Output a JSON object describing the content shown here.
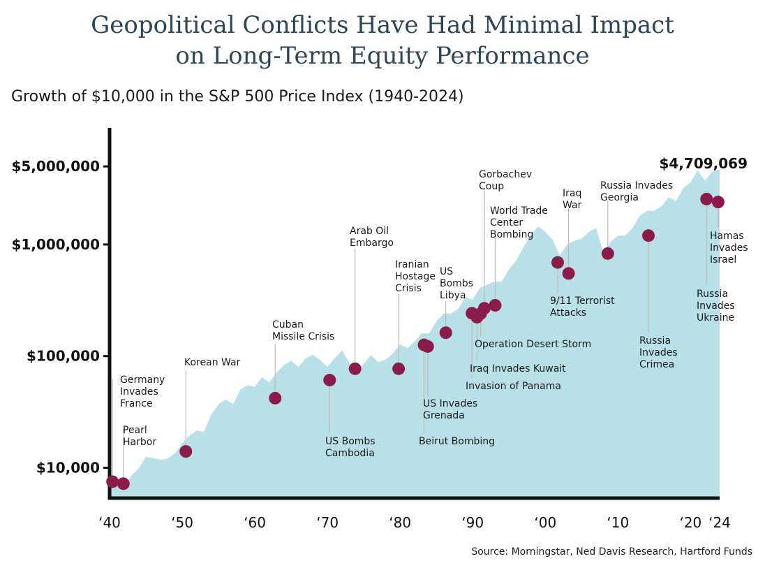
{
  "header": {
    "title_line1": "Geopolitical Conflicts Have Had Minimal Impact",
    "title_line2": "on Long-Term Equity Performance",
    "subtitle": "Growth of $10,000 in the S&P 500 Price Index (1940-2024)"
  },
  "source": "Source: Morningstar, Ned Davis Research, Hartford Funds",
  "colors": {
    "area": "#b7e0e8",
    "marker": "#8b1c4a",
    "axis": "#111111",
    "title": "#2b4657",
    "leader": "#bbbbbb"
  },
  "chart_data": {
    "type": "area",
    "title": "Geopolitical Conflicts Have Had Minimal Impact on Long-Term Equity Performance",
    "subtitle": "Growth of $10,000 in the S&P 500 Price Index (1940-2024)",
    "xlabel": "",
    "ylabel": "",
    "scale": "log",
    "ylim": [
      5000,
      5000000
    ],
    "xlim": [
      1940,
      2024
    ],
    "y_ticks": [
      {
        "value": 10000,
        "label": "$10,000"
      },
      {
        "value": 100000,
        "label": "$100,000"
      },
      {
        "value": 1000000,
        "label": "$1,000,000"
      },
      {
        "value": 5000000,
        "label": "$5,000,000"
      }
    ],
    "x_ticks": [
      {
        "value": 1940,
        "label": "‘40"
      },
      {
        "value": 1950,
        "label": "‘50"
      },
      {
        "value": 1960,
        "label": "‘60"
      },
      {
        "value": 1970,
        "label": "‘70"
      },
      {
        "value": 1980,
        "label": "‘80"
      },
      {
        "value": 1990,
        "label": "‘90"
      },
      {
        "value": 2000,
        "label": "‘00"
      },
      {
        "value": 2010,
        "label": "‘10"
      },
      {
        "value": 2020,
        "label": "‘20"
      },
      {
        "value": 2024,
        "label": "‘24"
      }
    ],
    "final_label": "$4,709,069",
    "series": [
      {
        "x": [
          1940,
          1941,
          1942,
          1943,
          1944,
          1945,
          1946,
          1947,
          1948,
          1949,
          1950,
          1951,
          1952,
          1953,
          1954,
          1955,
          1956,
          1957,
          1958,
          1959,
          1960,
          1961,
          1962,
          1963,
          1964,
          1965,
          1966,
          1967,
          1968,
          1969,
          1970,
          1971,
          1972,
          1973,
          1974,
          1975,
          1976,
          1977,
          1978,
          1979,
          1980,
          1981,
          1982,
          1983,
          1984,
          1985,
          1986,
          1987,
          1988,
          1989,
          1990,
          1991,
          1992,
          1993,
          1994,
          1995,
          1996,
          1997,
          1998,
          1999,
          2000,
          2001,
          2002,
          2003,
          2004,
          2005,
          2006,
          2007,
          2008,
          2009,
          2010,
          2011,
          2012,
          2013,
          2014,
          2015,
          2016,
          2017,
          2018,
          2019,
          2020,
          2021,
          2022,
          2023,
          2024
        ],
        "values": [
          8000,
          7200,
          6500,
          8500,
          9800,
          12500,
          12200,
          11800,
          12000,
          13500,
          16500,
          19500,
          21500,
          21000,
          30000,
          37000,
          41000,
          37000,
          50000,
          55000,
          53000,
          65000,
          58000,
          71000,
          83000,
          91000,
          80000,
          95000,
          103000,
          92000,
          80000,
          96000,
          112000,
          88000,
          70000,
          86000,
          102000,
          88000,
          93000,
          105000,
          128000,
          118000,
          135000,
          160000,
          160000,
          205000,
          240000,
          240000,
          265000,
          340000,
          320000,
          410000,
          435000,
          465000,
          465000,
          600000,
          720000,
          950000,
          1200000,
          1450000,
          1300000,
          1100000,
          800000,
          1000000,
          1080000,
          1130000,
          1300000,
          1400000,
          850000,
          1050000,
          1200000,
          1200000,
          1400000,
          1800000,
          2000000,
          2000000,
          2200000,
          2650000,
          2450000,
          3200000,
          3600000,
          4600000,
          3700000,
          4500000,
          4709069
        ]
      }
    ],
    "events": [
      {
        "label": "Germany Invades France",
        "year": 1940.4,
        "value": 7500,
        "lines": [
          "Germany",
          "Invades",
          "France"
        ]
      },
      {
        "label": "Pearl Harbor",
        "year": 1941.9,
        "value": 7200,
        "lines": [
          "Pearl",
          "Harbor"
        ]
      },
      {
        "label": "Korean War",
        "year": 1950.5,
        "value": 14000,
        "lines": [
          "Korean War"
        ]
      },
      {
        "label": "Cuban Missile Crisis",
        "year": 1962.8,
        "value": 42000,
        "lines": [
          "Cuban",
          "Missile Crisis"
        ]
      },
      {
        "label": "US Bombs Cambodia",
        "year": 1970.3,
        "value": 61000,
        "lines": [
          "US Bombs",
          "Cambodia"
        ]
      },
      {
        "label": "Arab Oil Embargo",
        "year": 1973.8,
        "value": 77000,
        "lines": [
          "Arab Oil",
          "Embargo"
        ]
      },
      {
        "label": "Iranian Hostage Crisis",
        "year": 1979.8,
        "value": 77000,
        "lines": [
          "Iranian",
          "Hostage",
          "Crisis"
        ]
      },
      {
        "label": "Beirut Bombing",
        "year": 1983.3,
        "value": 126000,
        "lines": [
          "Beirut Bombing"
        ]
      },
      {
        "label": "US Invades Grenada",
        "year": 1983.8,
        "value": 122000,
        "lines": [
          "US Invades",
          "Grenada"
        ]
      },
      {
        "label": "US Bombs Libya",
        "year": 1986.3,
        "value": 162000,
        "lines": [
          "US",
          "Bombs",
          "Libya"
        ]
      },
      {
        "label": "Invasion of Panama",
        "year": 1989.9,
        "value": 242000,
        "lines": [
          "Invasion of Panama"
        ]
      },
      {
        "label": "Iraq Invades Kuwait",
        "year": 1990.6,
        "value": 223000,
        "lines": [
          "Iraq Invades Kuwait"
        ]
      },
      {
        "label": "Operation Desert Storm",
        "year": 1991.1,
        "value": 240000,
        "lines": [
          "Operation Desert Storm"
        ]
      },
      {
        "label": "Gorbachev Coup",
        "year": 1991.6,
        "value": 268000,
        "lines": [
          "Gorbachev",
          "Coup"
        ]
      },
      {
        "label": "World Trade Center Bombing",
        "year": 1993.1,
        "value": 285000,
        "lines": [
          "World Trade",
          "Center",
          "Bombing"
        ]
      },
      {
        "label": "9/11 Terrorist Attacks",
        "year": 2001.7,
        "value": 690000,
        "lines": [
          "9/11 Terrorist",
          "Attacks"
        ]
      },
      {
        "label": "Iraq War",
        "year": 2003.2,
        "value": 550000,
        "lines": [
          "Iraq",
          "War"
        ]
      },
      {
        "label": "Russia Invades Georgia",
        "year": 2008.6,
        "value": 830000,
        "lines": [
          "Russia Invades",
          "Georgia"
        ]
      },
      {
        "label": "Russia Invades Crimea",
        "year": 2014.2,
        "value": 1200000,
        "lines": [
          "Russia",
          "Invades",
          "Crimea"
        ]
      },
      {
        "label": "Russia Invades Ukraine",
        "year": 2022.2,
        "value": 2550000,
        "lines": [
          "Russia",
          "Invades",
          "Ukraine"
        ]
      },
      {
        "label": "Hamas Invades Israel",
        "year": 2023.8,
        "value": 2400000,
        "lines": [
          "Hamas",
          "Invades",
          "Israel"
        ]
      }
    ]
  }
}
